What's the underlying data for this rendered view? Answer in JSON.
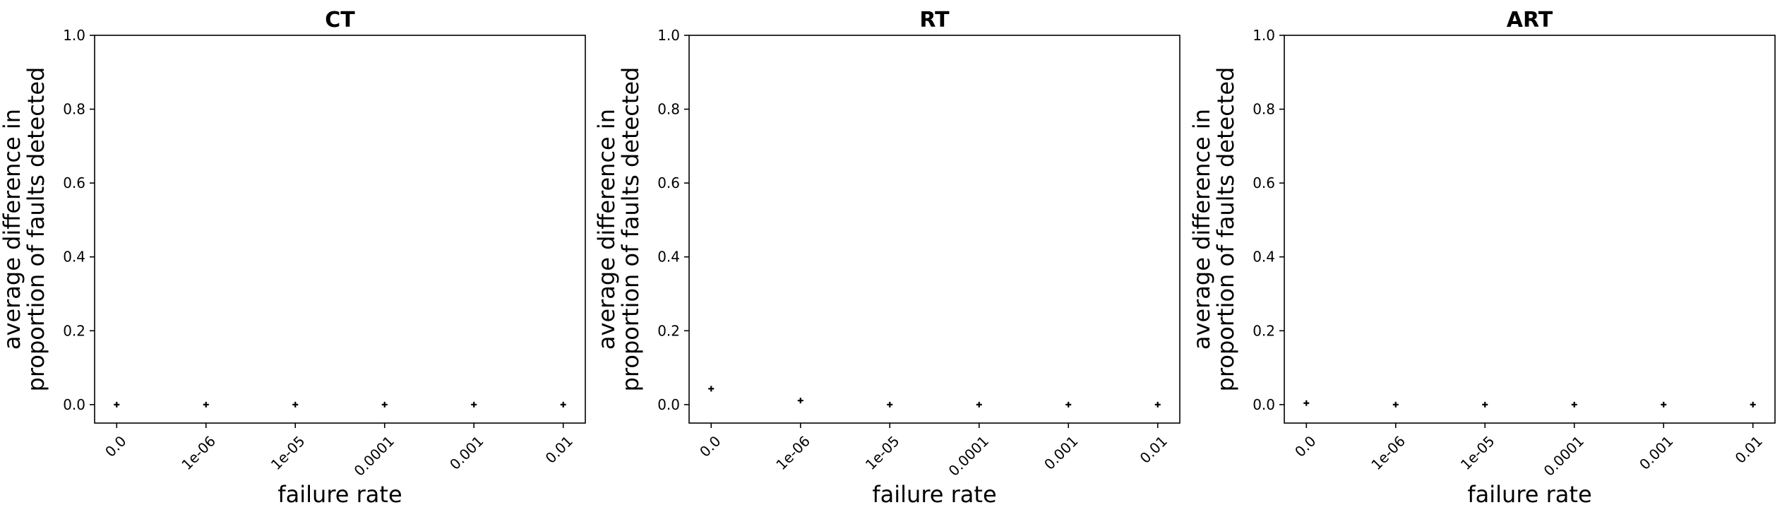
{
  "chart_data": [
    {
      "type": "scatter",
      "title": "CT",
      "xlabel": "failure rate",
      "ylabel_lines": [
        "average difference in",
        "proportion of faults detected"
      ],
      "categories": [
        "0.0",
        "1e-06",
        "1e-05",
        "0.0001",
        "0.001",
        "0.01"
      ],
      "values": [
        0.0,
        0.0,
        0.0,
        0.0,
        0.0,
        0.0
      ],
      "ylim": [
        -0.05,
        1.0
      ],
      "yticks": [
        0.0,
        0.2,
        0.4,
        0.6,
        0.8,
        1.0
      ],
      "ytick_labels": [
        "0.0",
        "0.2",
        "0.4",
        "0.6",
        "0.8",
        "1.0"
      ],
      "marker": "+",
      "grid": false
    },
    {
      "type": "scatter",
      "title": "RT",
      "xlabel": "failure rate",
      "ylabel_lines": [
        "average difference in",
        "proportion of faults detected"
      ],
      "categories": [
        "0.0",
        "1e-06",
        "1e-05",
        "0.0001",
        "0.001",
        "0.01"
      ],
      "values": [
        0.043,
        0.011,
        0.0,
        0.0,
        0.0,
        0.0
      ],
      "ylim": [
        -0.05,
        1.0
      ],
      "yticks": [
        0.0,
        0.2,
        0.4,
        0.6,
        0.8,
        1.0
      ],
      "ytick_labels": [
        "0.0",
        "0.2",
        "0.4",
        "0.6",
        "0.8",
        "1.0"
      ],
      "marker": "+",
      "grid": false
    },
    {
      "type": "scatter",
      "title": "ART",
      "xlabel": "failure rate",
      "ylabel_lines": [
        "average difference in",
        "proportion of faults detected"
      ],
      "categories": [
        "0.0",
        "1e-06",
        "1e-05",
        "0.0001",
        "0.001",
        "0.01"
      ],
      "values": [
        0.004,
        0.0,
        0.0,
        0.0,
        0.0,
        0.0
      ],
      "ylim": [
        -0.05,
        1.0
      ],
      "yticks": [
        0.0,
        0.2,
        0.4,
        0.6,
        0.8,
        1.0
      ],
      "ytick_labels": [
        "0.0",
        "0.2",
        "0.4",
        "0.6",
        "0.8",
        "1.0"
      ],
      "marker": "+",
      "grid": false
    }
  ]
}
